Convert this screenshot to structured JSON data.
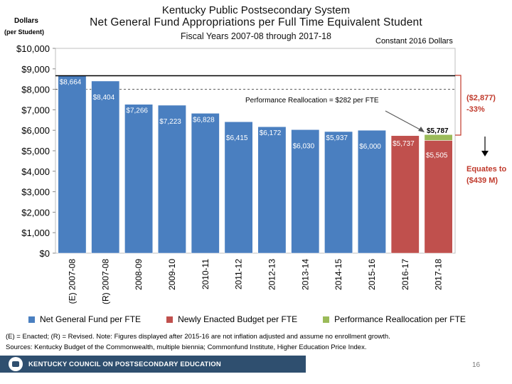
{
  "chart_data": {
    "type": "bar",
    "title": "Kentucky Public Postsecondary System",
    "subtitle": "Net General Fund Appropriations per Full Time Equivalent Student",
    "period": "Fiscal Years 2007-08 through 2017-18",
    "ylabel_line1": "Dollars",
    "ylabel_line2": "(per Student)",
    "constant_note": "Constant 2016 Dollars",
    "ylim": [
      0,
      10000
    ],
    "yticks": [
      "$0",
      "$1,000",
      "$2,000",
      "$3,000",
      "$4,000",
      "$5,000",
      "$6,000",
      "$7,000",
      "$8,000",
      "$9,000",
      "$10,000"
    ],
    "categories": [
      "(E) 2007-08",
      "(R) 2007-08",
      "2008-09",
      "2009-10",
      "2010-11",
      "2011-12",
      "2012-13",
      "2013-14",
      "2014-15",
      "2015-16",
      "2016-17",
      "2017-18"
    ],
    "series": [
      {
        "name": "Net General Fund per FTE",
        "color": "#4a7fc0",
        "values": [
          8664,
          8404,
          7266,
          7223,
          6828,
          6415,
          6172,
          6030,
          5937,
          6000,
          null,
          null
        ],
        "labels": [
          "$8,664",
          "$8,404",
          "$7,266",
          "$7,223",
          "$6,828",
          "$6,415",
          "$6,172",
          "$6,030",
          "$5,937",
          "$6,000",
          "",
          ""
        ]
      },
      {
        "name": "Newly Enacted Budget per FTE",
        "color": "#c0504d",
        "values": [
          null,
          null,
          null,
          null,
          null,
          null,
          null,
          null,
          null,
          null,
          5737,
          5505
        ],
        "labels": [
          "",
          "",
          "",
          "",
          "",
          "",
          "",
          "",
          "",
          "",
          "$5,737",
          "$5,505"
        ]
      },
      {
        "name": "Performance Reallocation per FTE",
        "color": "#9bbb59",
        "values": [
          null,
          null,
          null,
          null,
          null,
          null,
          null,
          null,
          null,
          null,
          null,
          282
        ],
        "labels": [
          "",
          "",
          "",
          "",
          "",
          "",
          "",
          "",
          "",
          "",
          "",
          ""
        ]
      }
    ],
    "reference_line": 8664,
    "dashed_line": 8000,
    "annotations": {
      "reallocation": "Performance Reallocation = $282 per FTE",
      "total_2017_18": "$5,787",
      "change_amount": "($2,877)",
      "change_pct": "-33%",
      "equates_line1": "Equates to",
      "equates_line2": "($439 M)"
    }
  },
  "notes": {
    "line1": "(E) = Enacted; (R) = Revised. Note: Figures displayed after 2015-16 are not inflation adjusted and assume no enrollment growth.",
    "line2": "Sources: Kentucky Budget of the Commonwealth, multiple biennia; Commonfund Institute, Higher Education Price Index."
  },
  "footer": {
    "org": "KENTUCKY COUNCIL ON POSTSECONDARY EDUCATION",
    "page": "16"
  }
}
